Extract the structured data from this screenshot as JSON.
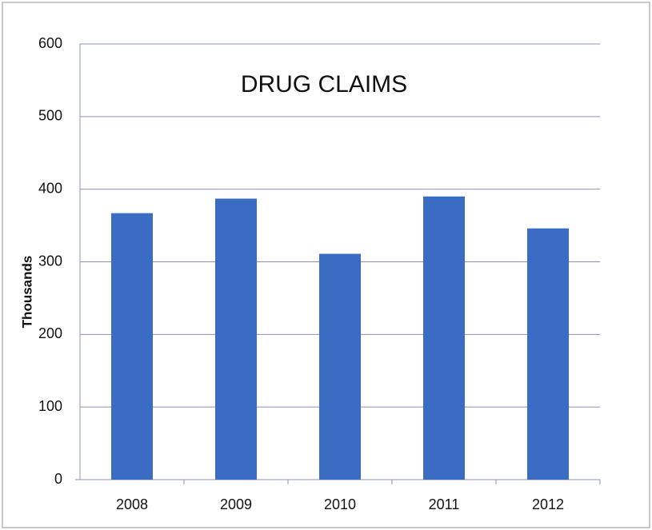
{
  "chart_data": {
    "type": "bar",
    "title": "DRUG CLAIMS",
    "y_label": "Thousands",
    "categories": [
      "2008",
      "2009",
      "2010",
      "2011",
      "2012"
    ],
    "values": [
      367,
      387,
      311,
      390,
      346
    ],
    "color": "#3a6cc4",
    "ylim": [
      0,
      600
    ],
    "yticks": [
      0,
      100,
      200,
      300,
      400,
      500,
      600
    ],
    "grid": true
  }
}
